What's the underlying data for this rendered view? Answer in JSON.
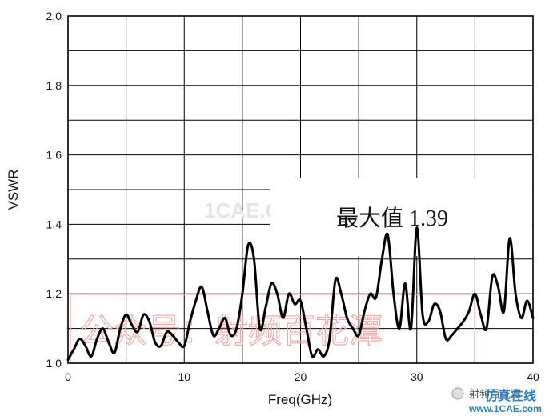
{
  "chart_data": {
    "type": "line",
    "xlabel": "Freq(GHz)",
    "ylabel": "VSWR",
    "xlim": [
      0,
      40
    ],
    "ylim": [
      1.0,
      2.0
    ],
    "x_ticks": [
      0,
      10,
      20,
      30,
      40
    ],
    "y_ticks": [
      1.0,
      1.2,
      1.4,
      1.6,
      1.8,
      2.0
    ],
    "x_tick_labels": [
      "0",
      "10",
      "20",
      "30",
      "40"
    ],
    "y_tick_labels": [
      "1.0",
      "1.2",
      "1.4",
      "1.6",
      "1.8",
      "2.0"
    ],
    "grid": true,
    "line_color": "#000000",
    "annotation": "最大值 1.39",
    "series": [
      {
        "x": [
          0,
          0.5,
          1,
          1.5,
          2,
          2.5,
          3,
          3.5,
          4,
          4.5,
          5,
          5.5,
          6,
          6.5,
          7,
          7.5,
          8,
          8.5,
          9,
          9.5,
          10,
          10.5,
          11,
          11.5,
          12,
          12.5,
          13,
          13.5,
          14,
          14.5,
          15,
          15.5,
          16,
          16.5,
          17,
          17.5,
          18,
          18.5,
          19,
          19.5,
          20,
          20.5,
          21,
          21.5,
          22,
          22.5,
          23,
          23.5,
          24,
          24.5,
          25,
          25.5,
          26,
          26.5,
          27,
          27.5,
          28,
          28.5,
          29,
          29.5,
          30,
          30.5,
          31,
          31.5,
          32,
          32.5,
          33,
          33.5,
          34,
          34.5,
          35,
          35.5,
          36,
          36.5,
          37,
          37.5,
          38,
          38.5,
          39,
          39.5,
          40
        ],
        "y": [
          1.01,
          1.04,
          1.07,
          1.05,
          1.02,
          1.07,
          1.1,
          1.06,
          1.03,
          1.1,
          1.14,
          1.11,
          1.09,
          1.14,
          1.12,
          1.06,
          1.05,
          1.09,
          1.08,
          1.06,
          1.05,
          1.12,
          1.18,
          1.22,
          1.15,
          1.08,
          1.1,
          1.13,
          1.08,
          1.1,
          1.2,
          1.34,
          1.3,
          1.1,
          1.16,
          1.23,
          1.2,
          1.13,
          1.2,
          1.17,
          1.18,
          1.1,
          1.02,
          1.04,
          1.02,
          1.07,
          1.24,
          1.2,
          1.13,
          1.1,
          1.08,
          1.15,
          1.2,
          1.19,
          1.3,
          1.37,
          1.2,
          1.1,
          1.23,
          1.1,
          1.39,
          1.14,
          1.12,
          1.17,
          1.15,
          1.07,
          1.08,
          1.1,
          1.12,
          1.15,
          1.2,
          1.14,
          1.1,
          1.25,
          1.22,
          1.15,
          1.36,
          1.2,
          1.13,
          1.18,
          1.13
        ]
      }
    ]
  },
  "watermark": {
    "site": "1CAE.COM",
    "gongzhonghao": "公众号：射频百花潭",
    "logo_text": "射频百花潭",
    "logo_cn": "仿真在线",
    "logo_url": "www.1CAE.com"
  }
}
